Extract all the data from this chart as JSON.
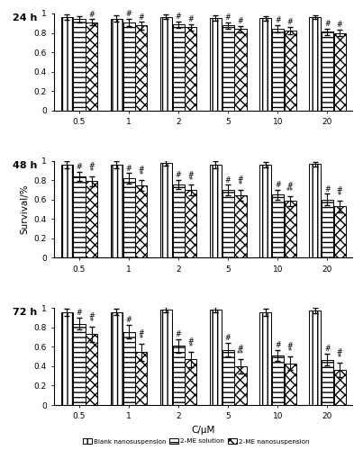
{
  "time_points": [
    "24 h",
    "48 h",
    "72 h"
  ],
  "time_keys": [
    "24h",
    "48h",
    "72h"
  ],
  "conc_labels": [
    "0.5",
    "1",
    "2",
    "5",
    "10",
    "20"
  ],
  "values": {
    "24h": {
      "blank": [
        0.96,
        0.948,
        0.965,
        0.955,
        0.95,
        0.96
      ],
      "sol": [
        0.94,
        0.91,
        0.885,
        0.875,
        0.84,
        0.81
      ],
      "nano": [
        0.91,
        0.875,
        0.86,
        0.84,
        0.82,
        0.8
      ]
    },
    "48h": {
      "blank": [
        0.96,
        0.96,
        0.975,
        0.96,
        0.96,
        0.965
      ],
      "sol": [
        0.84,
        0.82,
        0.755,
        0.7,
        0.65,
        0.6
      ],
      "nano": [
        0.79,
        0.745,
        0.7,
        0.645,
        0.585,
        0.53
      ]
    },
    "72h": {
      "blank": [
        0.96,
        0.96,
        0.985,
        0.98,
        0.96,
        0.975
      ],
      "sol": [
        0.84,
        0.755,
        0.61,
        0.57,
        0.51,
        0.468
      ],
      "nano": [
        0.73,
        0.545,
        0.47,
        0.4,
        0.43,
        0.36
      ]
    }
  },
  "errors": {
    "24h": {
      "blank": [
        0.028,
        0.03,
        0.022,
        0.03,
        0.025,
        0.02
      ],
      "sol": [
        0.03,
        0.038,
        0.032,
        0.033,
        0.038,
        0.033
      ],
      "nano": [
        0.03,
        0.038,
        0.033,
        0.033,
        0.038,
        0.03
      ]
    },
    "48h": {
      "blank": [
        0.038,
        0.033,
        0.028,
        0.038,
        0.028,
        0.025
      ],
      "sol": [
        0.048,
        0.052,
        0.048,
        0.052,
        0.052,
        0.058
      ],
      "nano": [
        0.052,
        0.058,
        0.052,
        0.058,
        0.052,
        0.062
      ]
    },
    "72h": {
      "blank": [
        0.038,
        0.033,
        0.028,
        0.028,
        0.038,
        0.028
      ],
      "sol": [
        0.062,
        0.072,
        0.072,
        0.068,
        0.058,
        0.062
      ],
      "nano": [
        0.078,
        0.088,
        0.078,
        0.072,
        0.072,
        0.075
      ]
    }
  },
  "annotations": {
    "24h": {
      "blank": [
        "",
        "",
        "",
        "",
        "",
        ""
      ],
      "sol": [
        "",
        "#",
        "#",
        "#",
        "#",
        "#"
      ],
      "nano": [
        "#",
        "#",
        "#",
        "#",
        "#",
        "#"
      ]
    },
    "48h": {
      "blank": [
        "",
        "",
        "",
        "",
        "",
        ""
      ],
      "sol": [
        "#",
        "#",
        "#",
        "#",
        "#",
        "#"
      ],
      "nano": [
        "*",
        "*",
        "*",
        "*",
        "**",
        "*"
      ]
    },
    "48h_sol_extra": [
      "",
      "",
      "",
      "",
      "",
      ""
    ],
    "48h_nano_hash": [
      "#",
      "#",
      "#",
      "#",
      "#",
      "#"
    ],
    "72h": {
      "blank": [
        "",
        "",
        "",
        "",
        "",
        ""
      ],
      "sol": [
        "#",
        "#",
        "#",
        "#",
        "#",
        "#"
      ],
      "nano": [
        "*",
        "*",
        "*",
        "**",
        "*",
        "*"
      ]
    },
    "72h_nano_hash": [
      "#",
      "#",
      "#",
      "#",
      "#",
      "#"
    ]
  },
  "ylabel": "Survival/%",
  "xlabel": "C/μM",
  "yticks": [
    0,
    0.2,
    0.4,
    0.6,
    0.8,
    1
  ],
  "ytick_labels": [
    "0",
    "0.2",
    "0.4",
    "0.6",
    "0.8",
    "1"
  ],
  "bar_width": 0.25,
  "legend_labels": [
    "Blank nanosuspension",
    "2-ME solution",
    "2-ME nanosuspension"
  ]
}
